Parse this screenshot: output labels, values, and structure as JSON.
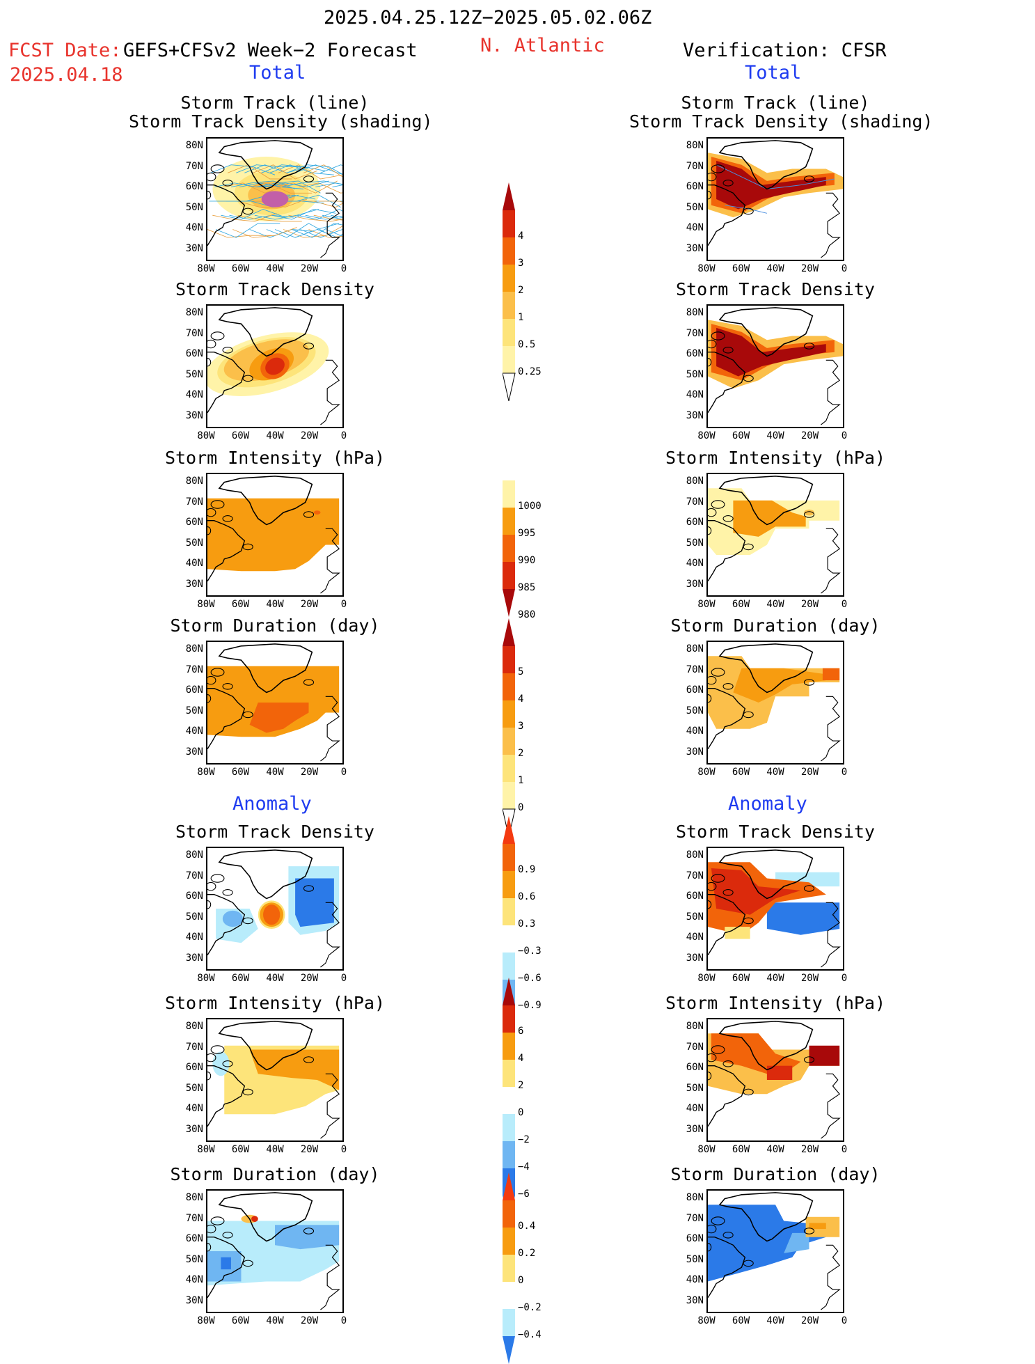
{
  "header": {
    "date_range": "2025.04.25.12Z−2025.05.02.06Z",
    "fcst_label": "FCST Date:",
    "model": "GEFS+CFSv2 Week−2 Forecast",
    "fcst_date": "2025.04.18",
    "region": "N. Atlantic",
    "verification": "Verification: CFSR"
  },
  "sections": {
    "total": "Total",
    "anomaly": "Anomaly"
  },
  "panel_titles": {
    "track_line": "Storm Track (line)",
    "track_density_shading": "Storm Track Density (shading)",
    "track_density": "Storm Track Density",
    "intensity": "Storm Intensity (hPa)",
    "duration": "Storm Duration (day)"
  },
  "axes": {
    "lat": [
      "80N",
      "70N",
      "60N",
      "50N",
      "40N",
      "30N"
    ],
    "lon": [
      "80W",
      "60W",
      "40W",
      "20W",
      "0"
    ]
  },
  "colorbars": {
    "density": [
      "4",
      "3",
      "2",
      "1",
      "0.5",
      "0.25"
    ],
    "intensity": [
      "1000",
      "995",
      "990",
      "985",
      "980"
    ],
    "duration": [
      "5",
      "4",
      "3",
      "2",
      "1",
      "0"
    ],
    "density_anom": [
      "0.9",
      "0.6",
      "0.3",
      "−0.3",
      "−0.6",
      "−0.9"
    ],
    "intensity_anom": [
      "6",
      "4",
      "2",
      "0",
      "−2",
      "−4",
      "−6"
    ],
    "duration_anom": [
      "0.4",
      "0.2",
      "0",
      "−0.2",
      "−0.4"
    ]
  },
  "colors": {
    "pale_yellow": "#fff3a8",
    "light_yellow": "#fde47a",
    "light_orange": "#fbbf4a",
    "orange": "#f79c10",
    "dark_orange": "#f2640a",
    "red": "#db2a0c",
    "dark_red": "#a8090a",
    "light_blue": "#b8ecfb",
    "mid_blue": "#6fb6f2",
    "blue": "#2b7ae8",
    "dark_blue": "#1d55c8",
    "title_red": "#e8332c",
    "title_blue": "#1f3cf0"
  }
}
